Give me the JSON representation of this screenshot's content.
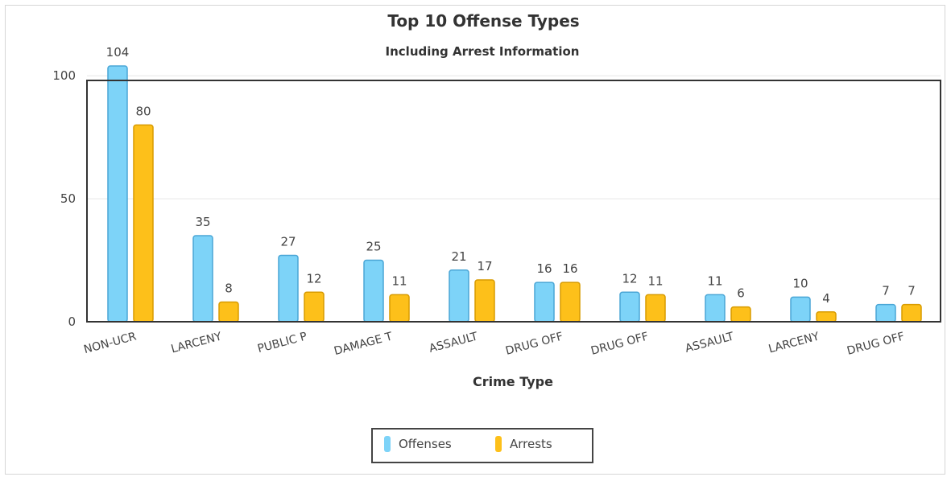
{
  "colors": {
    "offenses": "#7dd3f8",
    "offenses_stroke": "#4aa6d6",
    "arrests": "#fdc01a",
    "arrests_stroke": "#d89b00",
    "axis": "#333333",
    "grid": "#e6e6e6",
    "text": "#444444"
  },
  "legend": {
    "offenses_label": "Offenses",
    "arrests_label": "Arrests"
  },
  "chart_data": {
    "type": "bar",
    "title": "Top 10 Offense Types",
    "subtitle": "Including Arrest Information",
    "xlabel": "Crime Type",
    "ylabel": "",
    "ylim": [
      0,
      104
    ],
    "yticks": [
      0,
      50,
      100
    ],
    "grid": true,
    "legend_position": "bottom-center",
    "categories": [
      "NON-UCR",
      "LARCENY",
      "PUBLIC P",
      "DAMAGE T",
      "ASSAULT",
      "DRUG OFF",
      "DRUG OFF",
      "ASSAULT",
      "LARCENY",
      "DRUG OFF"
    ],
    "series": [
      {
        "name": "Offenses",
        "values": [
          104,
          35,
          27,
          25,
          21,
          16,
          12,
          11,
          10,
          7
        ]
      },
      {
        "name": "Arrests",
        "values": [
          80,
          8,
          12,
          11,
          17,
          16,
          11,
          6,
          4,
          7
        ]
      }
    ]
  }
}
